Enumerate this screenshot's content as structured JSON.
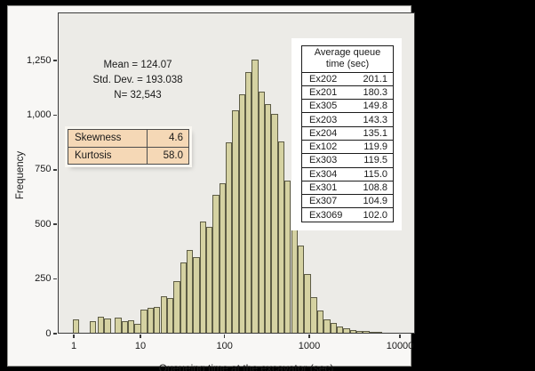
{
  "chart_data": {
    "type": "bar",
    "subtype": "histogram",
    "title": "",
    "xlabel": "Queueing time at the excavator (sec)",
    "ylabel": "Frequency",
    "x_scale": "log",
    "xlim": [
      0.8,
      15000
    ],
    "ylim": [
      0,
      1470
    ],
    "grid": false,
    "x_ticks": [
      1,
      10,
      100,
      1000,
      10000
    ],
    "x_tick_labels": [
      "1",
      "10",
      "100",
      "1000",
      "10000"
    ],
    "y_ticks": [
      0,
      250,
      500,
      750,
      1000,
      1250
    ],
    "y_tick_labels": [
      "0",
      "250",
      "500",
      "750",
      "1,000",
      "1,250"
    ],
    "x": [
      0.98,
      1.75,
      2.31,
      2.9,
      4.19,
      5.25,
      6.57,
      8.24,
      10.2,
      12.2,
      14.6,
      17.5,
      20.9,
      25,
      29.9,
      35.8,
      42.8,
      51.1,
      61.2,
      73.1,
      87.5,
      104,
      125,
      149,
      178,
      213,
      254,
      303,
      362,
      432,
      516,
      617,
      736,
      880,
      1046,
      1236,
      1458,
      1723,
      2032,
      2401,
      2831,
      3346,
      3945,
      4662,
      5500
    ],
    "values": [
      60,
      52,
      73,
      65,
      69,
      52,
      56,
      40,
      107,
      114,
      120,
      168,
      158,
      235,
      320,
      380,
      345,
      510,
      485,
      630,
      685,
      870,
      1020,
      1090,
      1195,
      1250,
      1105,
      1045,
      1000,
      875,
      695,
      556,
      400,
      270,
      164,
      103,
      60,
      44,
      29,
      19,
      13,
      9,
      7,
      5,
      3
    ],
    "mean": 124.07,
    "std_dev": 193.038,
    "n": 32543,
    "skewness": 4.6,
    "kurtosis": 58.0
  },
  "stats": {
    "mean": "Mean = 124.07",
    "std_dev": "Std. Dev. = 193.038",
    "n": "N= 32,543"
  },
  "moments": {
    "rows": [
      {
        "label": "Skewness",
        "value": "4.6"
      },
      {
        "label": "Kurtosis",
        "value": "58.0"
      }
    ]
  },
  "queue_table": {
    "header_line1": "Average queue",
    "header_line2": "time (sec)",
    "rows": [
      [
        "Ex202",
        "201.1"
      ],
      [
        "Ex201",
        "180.3"
      ],
      [
        "Ex305",
        "149.8"
      ],
      [
        "Ex203",
        "143.3"
      ],
      [
        "Ex204",
        "135.1"
      ],
      [
        "Ex102",
        "119.9"
      ],
      [
        "Ex303",
        "119.5"
      ],
      [
        "Ex304",
        "115.0"
      ],
      [
        "Ex301",
        "108.8"
      ],
      [
        "Ex307",
        "104.9"
      ],
      [
        "Ex3069",
        "102.0"
      ]
    ]
  },
  "colors": {
    "bar_fill": "#d5d2a2",
    "bar_border": "#5d5c45",
    "plot_background": "#ecebe7",
    "panel_background": "#f8f7f5",
    "page_background": "#000000",
    "moments_table_fill": "#f5d8b6",
    "axis": "#3b3b3b"
  }
}
